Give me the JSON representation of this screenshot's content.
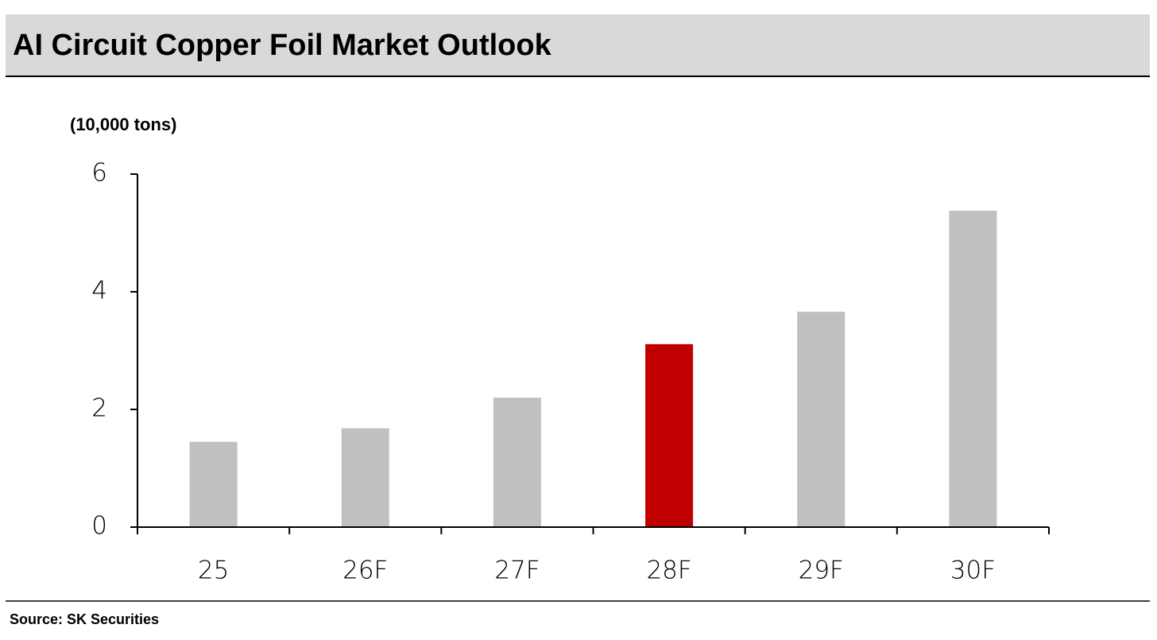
{
  "chart_data": {
    "type": "bar",
    "title": "AI Circuit Copper Foil Market Outlook",
    "y_label": "(10,000 tons)",
    "categories": [
      "25",
      "26F",
      "27F",
      "28F",
      "29F",
      "30F"
    ],
    "values": [
      1.45,
      1.68,
      2.2,
      3.11,
      3.66,
      5.38
    ],
    "colors": [
      "#c0c0c0",
      "#c0c0c0",
      "#c0c0c0",
      "#c00000",
      "#c0c0c0",
      "#c0c0c0"
    ],
    "ylim": [
      0,
      6
    ],
    "yticks": [
      0,
      2,
      4,
      6
    ],
    "grid": false,
    "source": "Source: SK Securities"
  }
}
